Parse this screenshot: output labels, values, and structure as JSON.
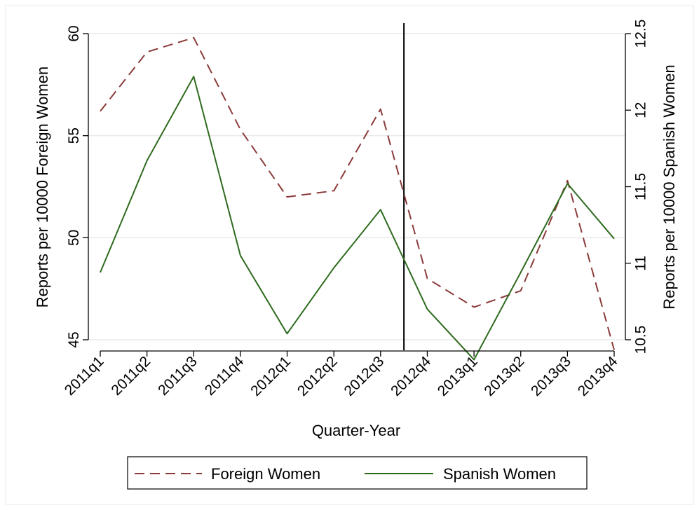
{
  "chart_data": {
    "type": "line",
    "title": "",
    "xlabel": "Quarter-Year",
    "ylabel_left": "Reports per 10000 Foreign Women",
    "ylabel_right": "Reports per 10000 Spanish Women",
    "categories": [
      "2011q1",
      "2011q2",
      "2011q3",
      "2011q4",
      "2012q1",
      "2012q2",
      "2012q3",
      "2012q4",
      "2013q1",
      "2013q2",
      "2013q3",
      "2013q4"
    ],
    "y_left": {
      "ylim": [
        45,
        60
      ],
      "ticks": [
        45,
        50,
        55,
        60
      ]
    },
    "y_right": {
      "ylim": [
        10.5,
        12.5
      ],
      "ticks": [
        10.5,
        11,
        11.5,
        12,
        12.5
      ]
    },
    "series": [
      {
        "name": "Foreign Women",
        "axis": "left",
        "style": "dashed",
        "color": "#8b3a3a",
        "values": [
          56.2,
          59.1,
          59.8,
          55.3,
          52.0,
          52.3,
          56.3,
          48.0,
          46.6,
          47.4,
          52.8,
          44.5
        ]
      },
      {
        "name": "Spanish Women",
        "axis": "right",
        "style": "solid",
        "color": "#2e6b1f",
        "values": [
          10.94,
          11.67,
          12.22,
          11.05,
          10.54,
          10.97,
          11.35,
          10.7,
          10.37,
          10.94,
          11.52,
          11.16
        ]
      }
    ],
    "vertical_line": {
      "between": [
        "2012q3",
        "2012q4"
      ],
      "color": "#000000"
    },
    "grid": true,
    "legend": {
      "placement": "bottom",
      "entries": [
        "Foreign Women",
        "Spanish Women"
      ]
    }
  }
}
